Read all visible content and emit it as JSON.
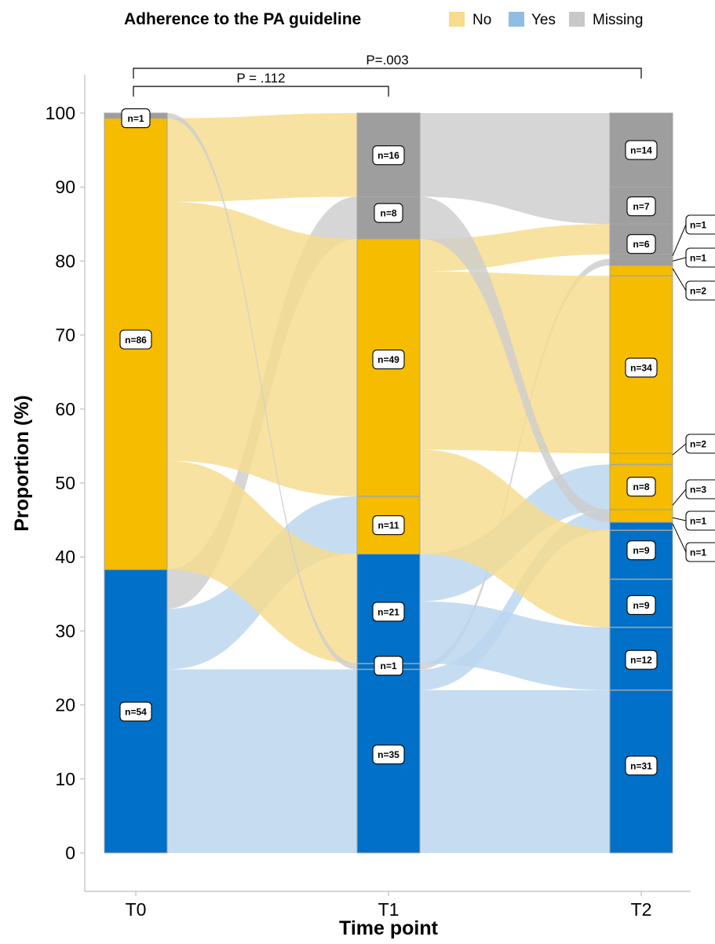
{
  "legend": {
    "title": "Adherence to the PA guideline",
    "items": [
      {
        "label": "No",
        "color": "#f7dc8c"
      },
      {
        "label": "Yes",
        "color": "#90bde4"
      },
      {
        "label": "Missing",
        "color": "#c8c8c8"
      }
    ]
  },
  "chart_data": {
    "type": "alluvial",
    "xlabel": "Time point",
    "ylabel": "Proportion (%)",
    "ylim": [
      0,
      100
    ],
    "yticks": [
      0,
      10,
      20,
      30,
      40,
      50,
      60,
      70,
      80,
      90,
      100
    ],
    "categories": [
      "T0",
      "T1",
      "T2"
    ],
    "colors": {
      "No": "#f5bc00",
      "Yes": "#0070c8",
      "Missing": "#9e9e9e"
    },
    "flow_colors": {
      "No": "#f7dc8c",
      "Yes": "#b9d5ee",
      "Missing": "#cdcdcd"
    },
    "comparisons": [
      {
        "from": "T0",
        "to": "T1",
        "label": "P = .112"
      },
      {
        "from": "T0",
        "to": "T2",
        "label": "P=.003"
      }
    ],
    "stratum_labels": [
      {
        "axis": "T0",
        "y": 99.3,
        "label": "n=1"
      },
      {
        "axis": "T0",
        "y": 69.4,
        "label": "n=86"
      },
      {
        "axis": "T0",
        "y": 19.1,
        "label": "n=54"
      },
      {
        "axis": "T1",
        "y": 94.3,
        "label": "n=16"
      },
      {
        "axis": "T1",
        "y": 86.5,
        "label": "n=8"
      },
      {
        "axis": "T1",
        "y": 66.7,
        "label": "n=49"
      },
      {
        "axis": "T1",
        "y": 44.3,
        "label": "n=11"
      },
      {
        "axis": "T1",
        "y": 32.6,
        "label": "n=21"
      },
      {
        "axis": "T1",
        "y": 25.3,
        "label": "n=1"
      },
      {
        "axis": "T1",
        "y": 13.3,
        "label": "n=35"
      },
      {
        "axis": "T2",
        "y": 95.0,
        "label": "n=14"
      },
      {
        "axis": "T2",
        "y": 87.4,
        "label": "n=7"
      },
      {
        "axis": "T2",
        "y": 82.3,
        "label": "n=6"
      },
      {
        "axis": "T2",
        "y": 65.6,
        "label": "n=34"
      },
      {
        "axis": "T2",
        "y": 49.5,
        "label": "n=8"
      },
      {
        "axis": "T2",
        "y": 40.9,
        "label": "n=9"
      },
      {
        "axis": "T2",
        "y": 33.5,
        "label": "n=9"
      },
      {
        "axis": "T2",
        "y": 26.1,
        "label": "n=12"
      },
      {
        "axis": "T2",
        "y": 11.8,
        "label": "n=31"
      }
    ],
    "callouts": [
      {
        "axis": "T2",
        "y": 80.7,
        "label": "n=1"
      },
      {
        "axis": "T2",
        "y": 80.0,
        "label": "n=1"
      },
      {
        "axis": "T2",
        "y": 79.0,
        "label": "n=2"
      },
      {
        "axis": "T2",
        "y": 53.8,
        "label": "n=2"
      },
      {
        "axis": "T2",
        "y": 47.0,
        "label": "n=3"
      },
      {
        "axis": "T2",
        "y": 45.3,
        "label": "n=1"
      },
      {
        "axis": "T2",
        "y": 44.5,
        "label": "n=1"
      }
    ],
    "strata": {
      "T0": [
        {
          "cat": "Yes",
          "y0": 0,
          "y1": 38.3
        },
        {
          "cat": "No",
          "y0": 38.3,
          "y1": 99.3
        },
        {
          "cat": "Missing",
          "y0": 99.3,
          "y1": 100
        }
      ],
      "T1": [
        {
          "cat": "Yes",
          "y0": 0,
          "y1": 40.4,
          "dividers": [
            24.8,
            25.6
          ]
        },
        {
          "cat": "No",
          "y0": 40.4,
          "y1": 83.0,
          "dividers": [
            48.2
          ]
        },
        {
          "cat": "Missing",
          "y0": 83.0,
          "y1": 100,
          "dividers": [
            88.7
          ]
        }
      ],
      "T2": [
        {
          "cat": "Yes",
          "y0": 0,
          "y1": 44.7,
          "dividers": [
            22.0,
            30.5,
            37.0,
            43.6
          ]
        },
        {
          "cat": "No",
          "y0": 44.7,
          "y1": 79.4,
          "dividers": [
            46.4,
            52.5,
            54.0,
            78.0
          ]
        },
        {
          "cat": "Missing",
          "y0": 79.4,
          "y1": 100,
          "dividers": [
            80.3,
            80.9,
            85.0,
            90.0
          ]
        }
      ]
    },
    "flows": [
      {
        "from": "T0",
        "to": "T1",
        "cat": "Yes",
        "src": [
          0,
          24.8
        ],
        "dst": [
          0,
          24.8
        ]
      },
      {
        "from": "T0",
        "to": "T1",
        "cat": "Yes",
        "src": [
          24.8,
          33.0
        ],
        "dst": [
          40.4,
          48.2
        ]
      },
      {
        "from": "T0",
        "to": "T1",
        "cat": "Missing",
        "src": [
          33.0,
          38.3
        ],
        "dst": [
          83.0,
          88.7
        ]
      },
      {
        "from": "T0",
        "to": "T1",
        "cat": "No",
        "src": [
          38.3,
          53.0
        ],
        "dst": [
          25.6,
          40.4
        ]
      },
      {
        "from": "T0",
        "to": "T1",
        "cat": "No",
        "src": [
          53.0,
          88.0
        ],
        "dst": [
          48.2,
          83.0
        ]
      },
      {
        "from": "T0",
        "to": "T1",
        "cat": "No",
        "src": [
          88.0,
          99.3
        ],
        "dst": [
          88.7,
          100
        ]
      },
      {
        "from": "T0",
        "to": "T1",
        "cat": "Missing",
        "src": [
          99.3,
          100
        ],
        "dst": [
          24.8,
          25.6
        ]
      },
      {
        "from": "T1",
        "to": "T2",
        "cat": "Yes",
        "src": [
          0,
          22.0
        ],
        "dst": [
          0,
          22.0
        ]
      },
      {
        "from": "T1",
        "to": "T2",
        "cat": "Yes",
        "src": [
          22.0,
          24.8
        ],
        "dst": [
          43.6,
          46.4
        ]
      },
      {
        "from": "T1",
        "to": "T2",
        "cat": "Missing",
        "src": [
          24.8,
          25.6
        ],
        "dst": [
          79.4,
          80.3
        ]
      },
      {
        "from": "T1",
        "to": "T2",
        "cat": "Yes",
        "src": [
          25.6,
          34.0
        ],
        "dst": [
          22.0,
          30.5
        ]
      },
      {
        "from": "T1",
        "to": "T2",
        "cat": "Yes",
        "src": [
          34.0,
          40.4
        ],
        "dst": [
          46.4,
          52.5
        ]
      },
      {
        "from": "T1",
        "to": "T2",
        "cat": "No",
        "src": [
          40.4,
          48.2
        ],
        "dst": [
          30.5,
          37.0
        ]
      },
      {
        "from": "T1",
        "to": "T2",
        "cat": "No",
        "src": [
          48.2,
          54.5
        ],
        "dst": [
          37.0,
          43.6
        ]
      },
      {
        "from": "T1",
        "to": "T2",
        "cat": "No",
        "src": [
          54.5,
          78.6
        ],
        "dst": [
          54.0,
          78.0
        ]
      },
      {
        "from": "T1",
        "to": "T2",
        "cat": "No",
        "src": [
          78.6,
          83.0
        ],
        "dst": [
          80.9,
          85.0
        ]
      },
      {
        "from": "T1",
        "to": "T2",
        "cat": "Missing",
        "src": [
          83.0,
          88.7
        ],
        "dst": [
          44.7,
          46.4
        ]
      },
      {
        "from": "T1",
        "to": "T2",
        "cat": "Missing",
        "src": [
          88.7,
          100
        ],
        "dst": [
          85.0,
          100
        ]
      }
    ]
  }
}
